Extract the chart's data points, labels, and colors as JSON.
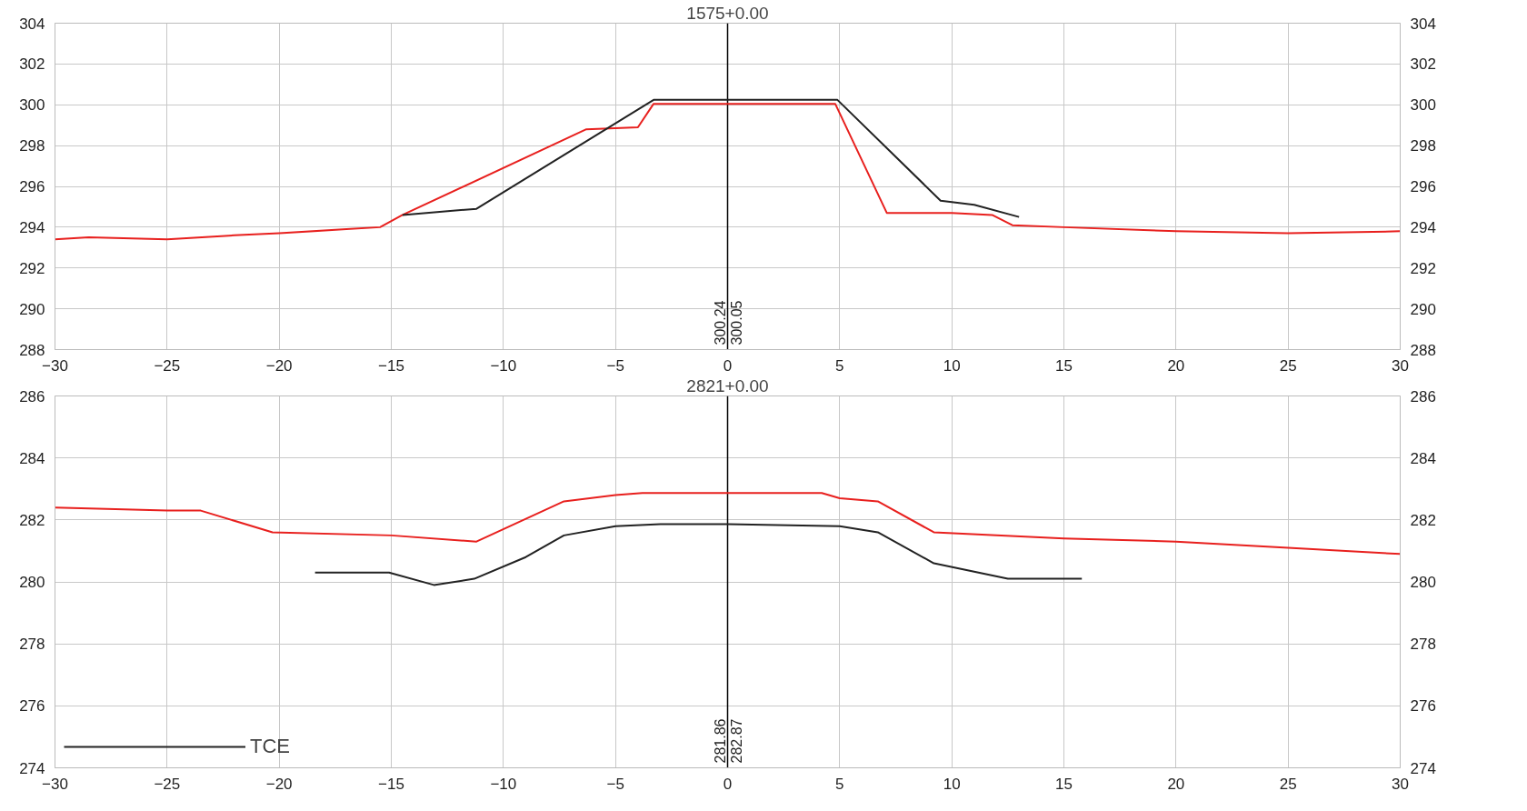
{
  "chart_data": [
    {
      "type": "line",
      "title": "1575+0.00",
      "xlim": [
        -30,
        30
      ],
      "xticks": [
        -30,
        -25,
        -20,
        -15,
        -10,
        -5,
        0,
        5,
        10,
        15,
        20,
        25,
        30
      ],
      "ylim": [
        288,
        304
      ],
      "yticks": [
        288,
        290,
        292,
        294,
        296,
        298,
        300,
        302,
        304
      ],
      "y2lim": [
        288,
        304
      ],
      "y2ticks": [
        288,
        290,
        292,
        294,
        296,
        298,
        300,
        302,
        304
      ],
      "grid": true,
      "legend": false,
      "series": [
        {
          "color": "#e8201e",
          "x": [
            -30,
            -28.5,
            -25,
            -22,
            -20,
            -17,
            -15.5,
            -14.5,
            -6.3,
            -4,
            -3.3,
            0,
            4.8,
            7.1,
            10,
            11.8,
            12.7,
            15,
            20,
            25,
            30
          ],
          "values": [
            293.4,
            293.5,
            293.4,
            293.6,
            293.7,
            293.9,
            294.0,
            294.6,
            298.8,
            298.9,
            300.05,
            300.05,
            300.05,
            294.7,
            294.7,
            294.6,
            294.1,
            294.0,
            293.8,
            293.7,
            293.8
          ]
        },
        {
          "color": "#222222",
          "x": [
            -14.5,
            -11.2,
            -3.3,
            0,
            4.9,
            9.5,
            11,
            13
          ],
          "values": [
            294.6,
            294.9,
            300.24,
            300.24,
            300.24,
            295.3,
            295.1,
            294.5
          ]
        }
      ],
      "ref_lines": [
        {
          "axis": "x",
          "value": 0,
          "color": "#000000"
        }
      ],
      "annotations": [
        "300.24",
        "300.05"
      ]
    },
    {
      "type": "line",
      "title": "2821+0.00",
      "xlim": [
        -30,
        30
      ],
      "xticks": [
        -30,
        -25,
        -20,
        -15,
        -10,
        -5,
        0,
        5,
        10,
        15,
        20,
        25,
        30
      ],
      "ylim": [
        274,
        286
      ],
      "yticks": [
        274,
        276,
        278,
        280,
        282,
        284,
        286
      ],
      "y2lim": [
        274,
        286
      ],
      "y2ticks": [
        274,
        276,
        278,
        280,
        282,
        284,
        286
      ],
      "grid": true,
      "legend": "bottom left",
      "series": [
        {
          "color": "#e8201e",
          "x": [
            -30,
            -25,
            -23.5,
            -20.3,
            -15,
            -11.2,
            -7.3,
            -5,
            -3.8,
            0,
            4.2,
            5,
            6.7,
            9.2,
            15,
            20,
            25,
            30
          ],
          "values": [
            282.4,
            282.3,
            282.3,
            281.6,
            281.5,
            281.3,
            282.6,
            282.8,
            282.87,
            282.87,
            282.87,
            282.7,
            282.6,
            281.6,
            281.4,
            281.3,
            281.1,
            280.9
          ]
        },
        {
          "name": "TCE",
          "color": "#222222",
          "x": [
            -18.4,
            -15.1,
            -13.1,
            -11.3,
            -9,
            -7.3,
            -5,
            -3,
            0,
            5,
            6.7,
            9.2,
            12.5,
            15.8
          ],
          "values": [
            280.3,
            280.3,
            279.9,
            280.1,
            280.8,
            281.5,
            281.8,
            281.86,
            281.86,
            281.8,
            281.6,
            280.6,
            280.1,
            280.1
          ]
        }
      ],
      "ref_lines": [
        {
          "axis": "x",
          "value": 0,
          "color": "#000000"
        }
      ],
      "annotations": [
        "281.86",
        "282.87"
      ]
    }
  ]
}
